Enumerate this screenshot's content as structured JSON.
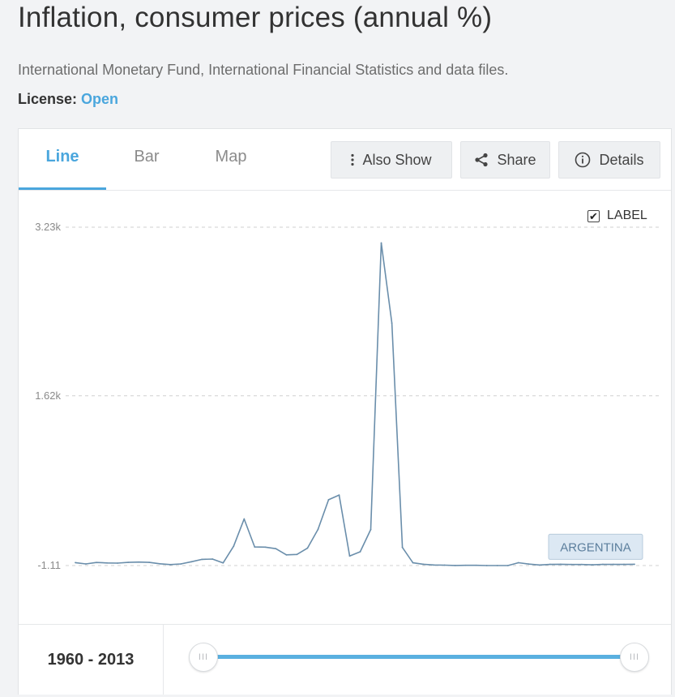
{
  "header": {
    "title": "Inflation, consumer prices (annual %)",
    "source": "International Monetary Fund, International Financial Statistics and data files.",
    "license_label": "License:",
    "license_value": "Open"
  },
  "tabs": [
    {
      "label": "Line",
      "active": true
    },
    {
      "label": "Bar",
      "active": false
    },
    {
      "label": "Map",
      "active": false
    }
  ],
  "toolbar": {
    "also_show": "Also Show",
    "share": "Share",
    "details": "Details"
  },
  "label_toggle": {
    "label": "LABEL",
    "checked": true
  },
  "colors": {
    "accent": "#4aa6dd",
    "line": "#6a8eab",
    "gridline": "#d0d0d0",
    "series_label_bg": "#dce8f3"
  },
  "chart_data": {
    "type": "line",
    "xlabel": "",
    "ylabel": "",
    "ylim": [
      -1.11,
      3230
    ],
    "yticks": [
      {
        "value": 3230,
        "label": "3.23k"
      },
      {
        "value": 1620,
        "label": "1.62k"
      },
      {
        "value": -1.11,
        "label": "-1.11"
      }
    ],
    "grid": true,
    "x": [
      1960,
      1961,
      1962,
      1963,
      1964,
      1965,
      1966,
      1967,
      1968,
      1969,
      1970,
      1971,
      1972,
      1973,
      1974,
      1975,
      1976,
      1977,
      1978,
      1979,
      1980,
      1981,
      1982,
      1983,
      1984,
      1985,
      1986,
      1987,
      1988,
      1989,
      1990,
      1991,
      1992,
      1993,
      1994,
      1995,
      1996,
      1997,
      1998,
      1999,
      2000,
      2001,
      2002,
      2003,
      2004,
      2005,
      2006,
      2007,
      2008,
      2009,
      2010,
      2011,
      2012,
      2013
    ],
    "series": [
      {
        "name": "ARGENTINA",
        "values": [
          27,
          14,
          28,
          24,
          22,
          29,
          32,
          29,
          16,
          8,
          14,
          35,
          58,
          61,
          24,
          183,
          444,
          176,
          175,
          160,
          101,
          105,
          165,
          344,
          627,
          672,
          90,
          131,
          343,
          3080,
          2314,
          172,
          25,
          11,
          4,
          3,
          0,
          1,
          1,
          -1,
          -1,
          -1,
          26,
          13,
          4,
          10,
          11,
          9,
          9,
          6,
          10,
          10,
          10,
          11
        ]
      }
    ],
    "series_label": "ARGENTINA"
  },
  "range": {
    "label": "1960 - 2013",
    "start_handle": "III",
    "end_handle": "III"
  }
}
